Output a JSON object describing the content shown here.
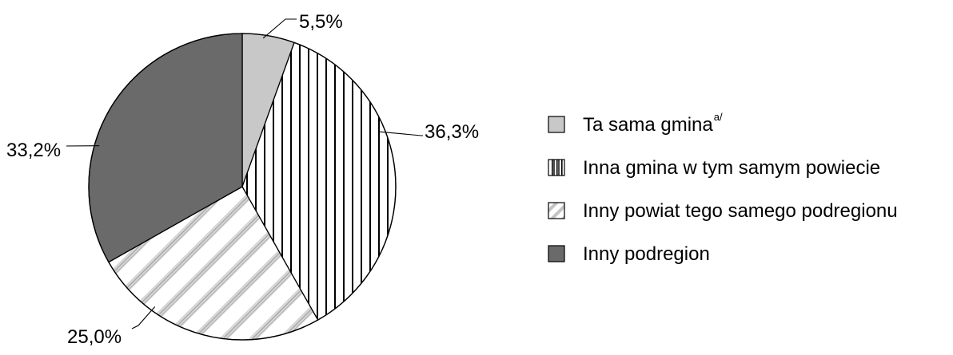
{
  "chart_data": {
    "type": "pie",
    "title": "",
    "slices": [
      {
        "name": "Ta sama gmina",
        "superscript": "a/",
        "value": 5.5,
        "label": "5,5%",
        "color": "#c8c8c8",
        "pattern": "solid-light"
      },
      {
        "name": "Inna gmina w tym samym powiecie",
        "superscript": "",
        "value": 36.3,
        "label": "36,3%",
        "color": "#000000",
        "pattern": "vertical-stripes"
      },
      {
        "name": "Inny powiat tego samego podregionu",
        "superscript": "",
        "value": 25.0,
        "label": "25,0%",
        "color": "#8c8c8c",
        "pattern": "diagonal-dotted-stripes"
      },
      {
        "name": "Inny podregion",
        "superscript": "",
        "value": 33.2,
        "label": "33,2%",
        "color": "#6a6a6a",
        "pattern": "solid-dark"
      }
    ],
    "start_angle": "12 o'clock",
    "direction": "clockwise",
    "legend_position": "right"
  }
}
